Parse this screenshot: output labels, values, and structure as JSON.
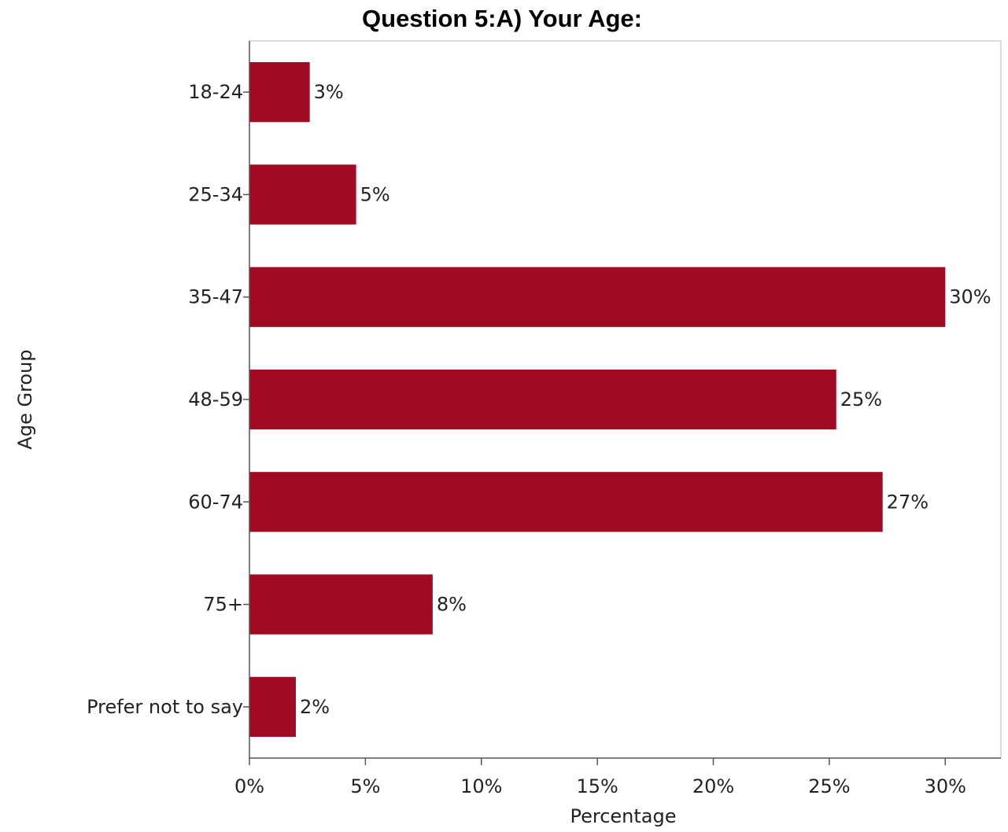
{
  "chart_data": {
    "type": "bar",
    "orientation": "horizontal",
    "title": "Question 5:A) Your Age:",
    "xlabel": "Percentage",
    "ylabel": "Age Group",
    "categories": [
      "18-24",
      "25-34",
      "35-47",
      "48-59",
      "60-74",
      "75+",
      "Prefer not to say"
    ],
    "values": [
      2.6,
      4.6,
      30.0,
      25.3,
      27.3,
      7.9,
      2.0
    ],
    "data_labels": [
      "3%",
      "5%",
      "30%",
      "25%",
      "27%",
      "8%",
      "2%"
    ],
    "xlim": [
      0,
      32.4
    ],
    "xticks": [
      0,
      5,
      10,
      15,
      20,
      25,
      30
    ],
    "xtick_labels": [
      "0%",
      "5%",
      "10%",
      "15%",
      "20%",
      "25%",
      "30%"
    ],
    "bar_color": "#a00a22",
    "grid": false,
    "legend": "none"
  }
}
